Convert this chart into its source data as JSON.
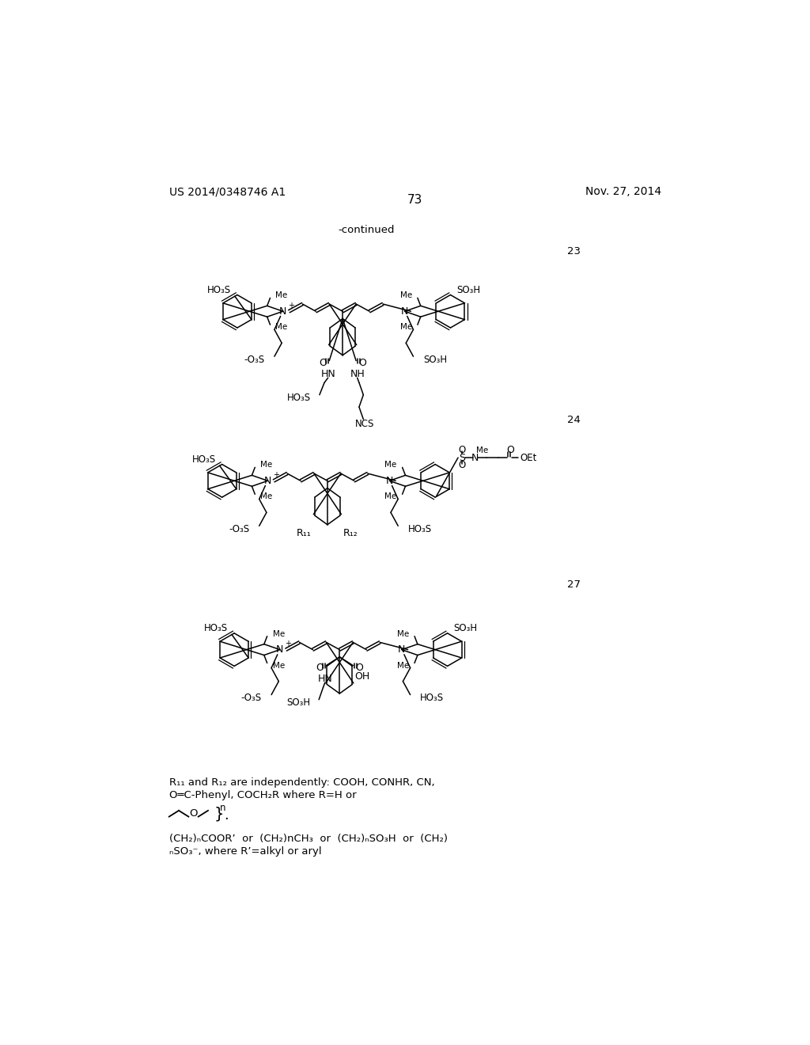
{
  "background_color": "#ffffff",
  "header_left": "US 2014/0348746 A1",
  "header_right": "Nov. 27, 2014",
  "page_number": "73",
  "continued_label": "-continued",
  "comp23_label": "23",
  "comp24_label": "24",
  "comp27_label": "27",
  "footer_line1": "R₁₁ and R₁₂ are independently: COOH, CONHR, CN,",
  "footer_line2": "O═C-Phenyl, COCH₂R where R=H or",
  "footer_line3": "(CH₂)ₙCOOR’  or  (CH₂)nCH₃  or  (CH₂)ₙSO₃H  or  (CH₂)",
  "footer_line4": "ₙSO₃⁻, where R’=alkyl or aryl"
}
